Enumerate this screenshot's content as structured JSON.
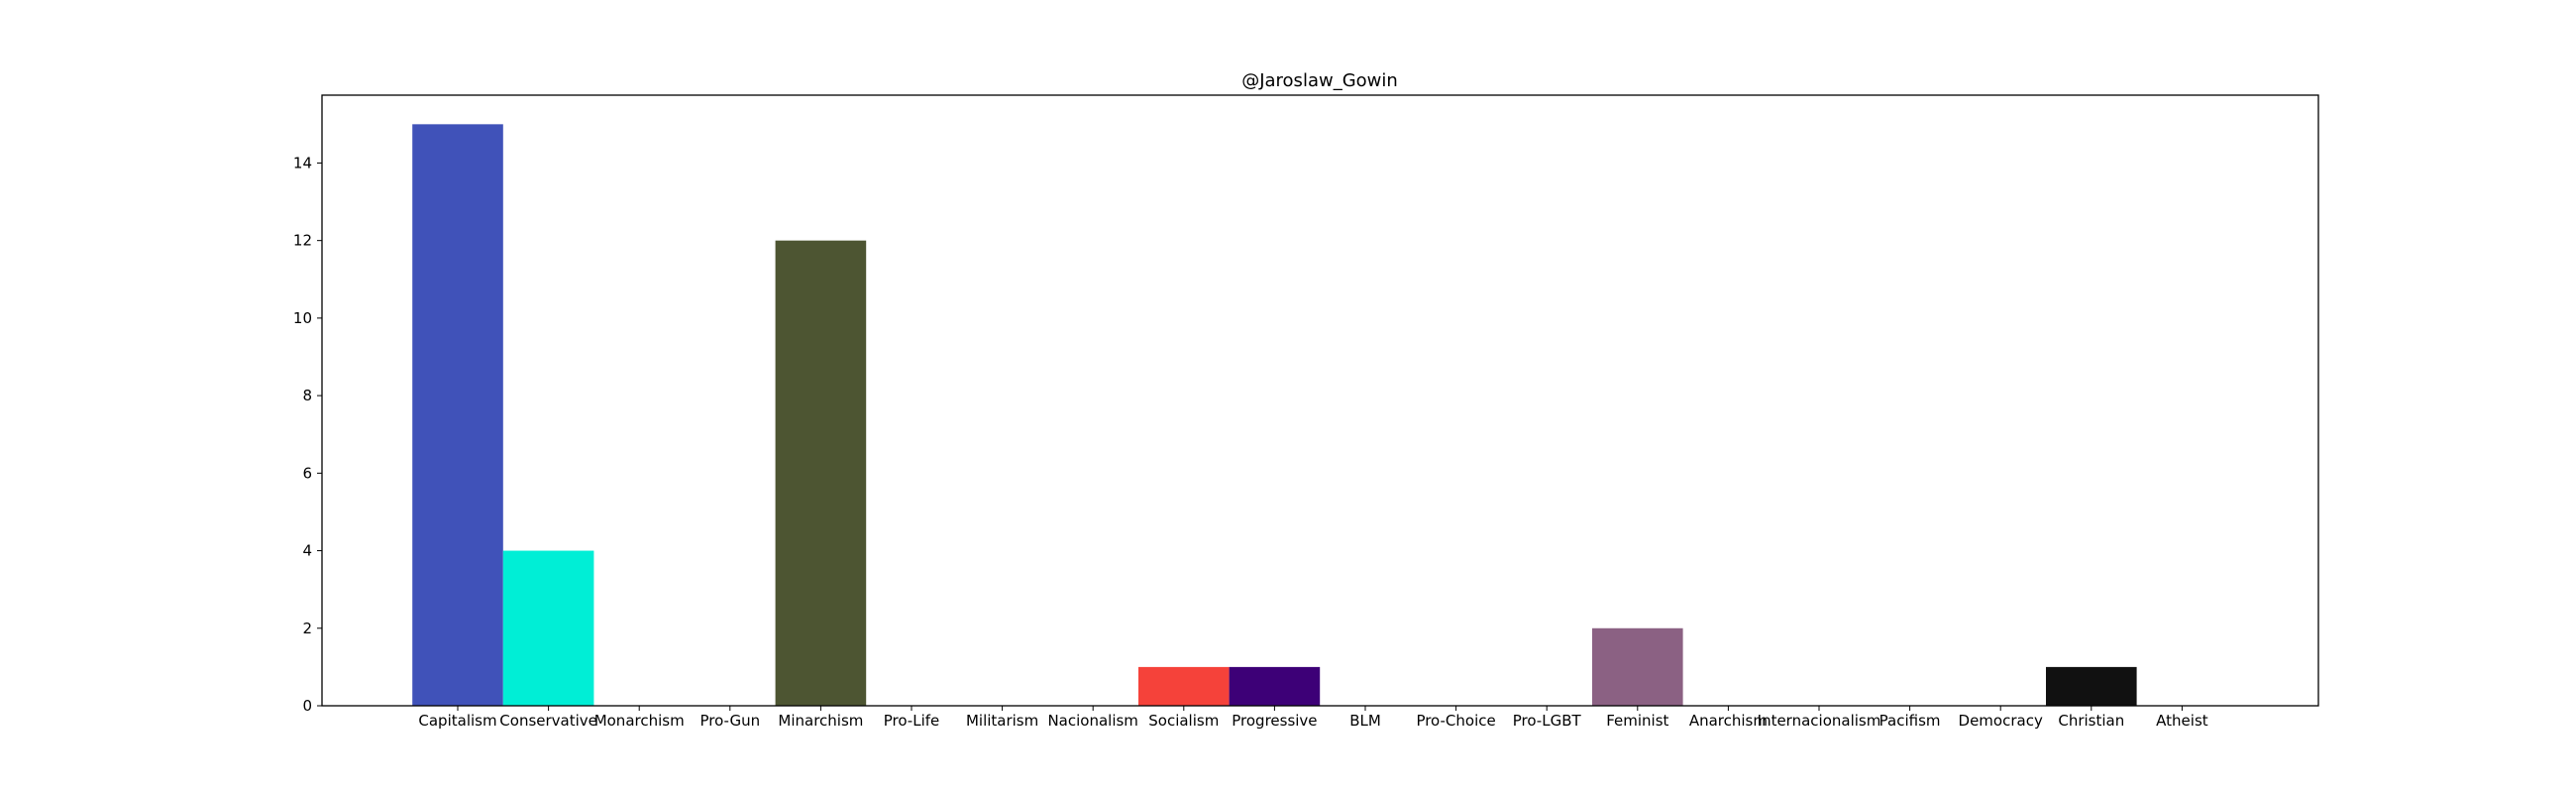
{
  "chart_data": {
    "type": "bar",
    "title": "@Jaroslaw_Gowin",
    "xlabel": "",
    "ylabel": "",
    "categories": [
      "Capitalism",
      "Conservative",
      "Monarchism",
      "Pro-Gun",
      "Minarchism",
      "Pro-Life",
      "Militarism",
      "Nacionalism",
      "Socialism",
      "Progressive",
      "BLM",
      "Pro-Choice",
      "Pro-LGBT",
      "Feminist",
      "Anarchism",
      "Internacionalism",
      "Pacifism",
      "Democracy",
      "Christian",
      "Atheist"
    ],
    "values": [
      15,
      4,
      0,
      0,
      12,
      0,
      0,
      0,
      1,
      1,
      0,
      0,
      0,
      2,
      0,
      0,
      0,
      0,
      1,
      0
    ],
    "colors": [
      "#4052b9",
      "#00eed6",
      "#7a7a7a",
      "#7a7a7a",
      "#4d5532",
      "#7a7a7a",
      "#7a7a7a",
      "#7a7a7a",
      "#f5423a",
      "#3d0077",
      "#7a7a7a",
      "#7a7a7a",
      "#7a7a7a",
      "#8b6183",
      "#7a7a7a",
      "#7a7a7a",
      "#7a7a7a",
      "#7a7a7a",
      "#111111",
      "#7a7a7a"
    ],
    "ylim": [
      0,
      15.75
    ],
    "yticks": [
      0,
      2,
      4,
      6,
      8,
      10,
      12,
      14
    ],
    "grid": false,
    "legend": false
  }
}
